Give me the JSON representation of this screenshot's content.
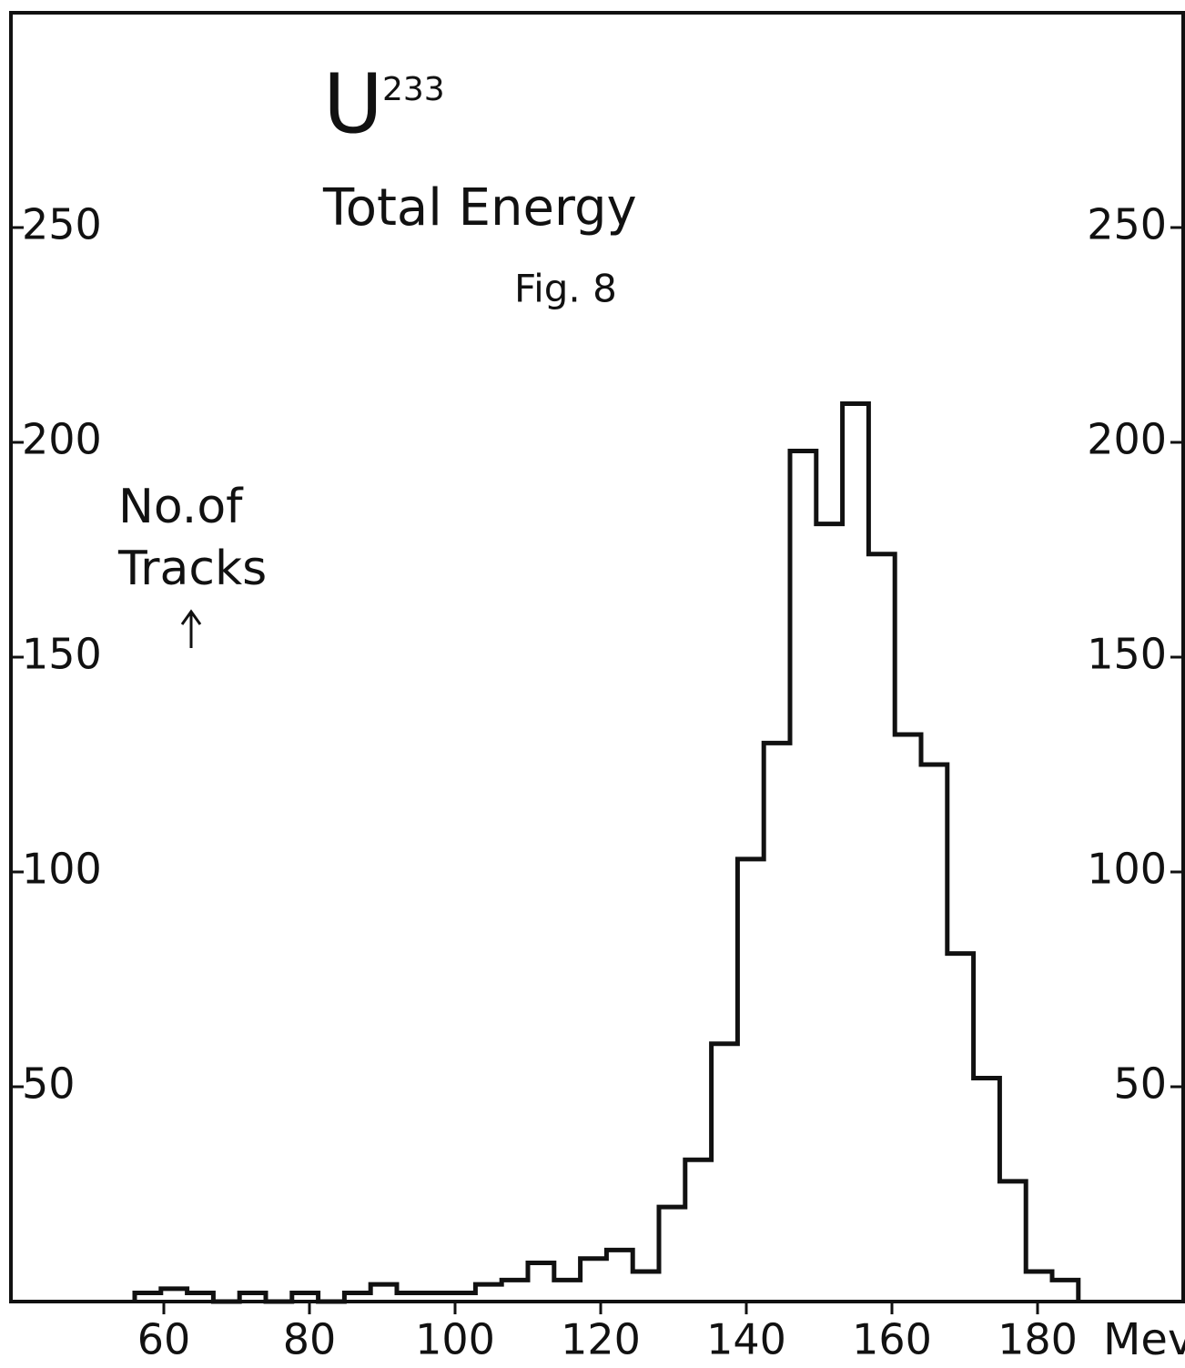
{
  "chart_data": {
    "type": "histogram",
    "title": "Total Energy",
    "subtitle": "Fig. 8",
    "annotations": [
      "U",
      "233"
    ],
    "ylabel_lines": [
      "No.of",
      "Tracks"
    ],
    "xlabel": "Mev",
    "bins": [
      56,
      59.6,
      63.2,
      66.8,
      70.4,
      74,
      77.6,
      81.2,
      84.8,
      88.4,
      92,
      95.6,
      99.2,
      102.8,
      106.4,
      110,
      113.6,
      117.2,
      120.8,
      124.4,
      128,
      131.6,
      135.2,
      138.8,
      142.4,
      146,
      149.6,
      153.2,
      156.8,
      160.4,
      164,
      167.6,
      171.2,
      174.8,
      178.4,
      182,
      185.6
    ],
    "values": [
      2,
      3,
      2,
      0,
      2,
      0,
      2,
      0,
      2,
      4,
      2,
      2,
      2,
      4,
      5,
      9,
      5,
      10,
      12,
      7,
      22,
      33,
      60,
      103,
      130,
      198,
      181,
      209,
      174,
      132,
      125,
      81,
      52,
      28,
      7,
      5
    ],
    "color": "#111111",
    "xlim": [
      39,
      200
    ],
    "xticks": [
      60,
      80,
      100,
      120,
      140,
      160,
      180
    ],
    "ylim": [
      0,
      300
    ],
    "yticks": [
      50,
      100,
      150,
      200,
      250
    ]
  }
}
